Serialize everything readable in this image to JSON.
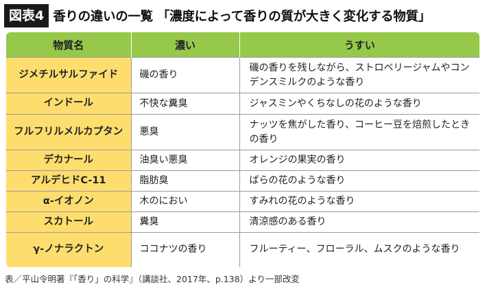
{
  "header": {
    "badge": "図表4",
    "title": "香りの違いの一覧 「濃度によって香りの質が大きく変化する物質」"
  },
  "table": {
    "columns": [
      "物質名",
      "濃い",
      "うすい"
    ],
    "rows": [
      {
        "name": "ジメチルサルファイド",
        "thick": "磯の香り",
        "thin": "磯の香りを残しながら、ストロベリージャムやコンデンスミルクのような香り"
      },
      {
        "name": "インドール",
        "thick": "不快な糞臭",
        "thin": "ジャスミンやくちなしの花のような香り"
      },
      {
        "name": "フルフリルメルカプタン",
        "thick": "悪臭",
        "thin": "ナッツを焦がした香り、コーヒー豆を焙煎したときの香り"
      },
      {
        "name": "デカナール",
        "thick": "油臭い悪臭",
        "thin": "オレンジの果実の香り"
      },
      {
        "name": "アルデヒドC-11",
        "thick": "脂肪臭",
        "thin": "ばらの花のような香り"
      },
      {
        "name": "α-イオノン",
        "thick": "木のにおい",
        "thin": "すみれの花のような香り"
      },
      {
        "name": "スカトール",
        "thick": "糞臭",
        "thin": "清涼感のある香り"
      },
      {
        "name": "γ-ノナラクトン",
        "thick": "ココナツの香り",
        "thin": "フルーティー、フローラル、ムスクのような香り"
      }
    ]
  },
  "footer": {
    "source": "表／平山令明著『「香り」の科学』（講談社、2017年、p.138）より一部改変"
  }
}
